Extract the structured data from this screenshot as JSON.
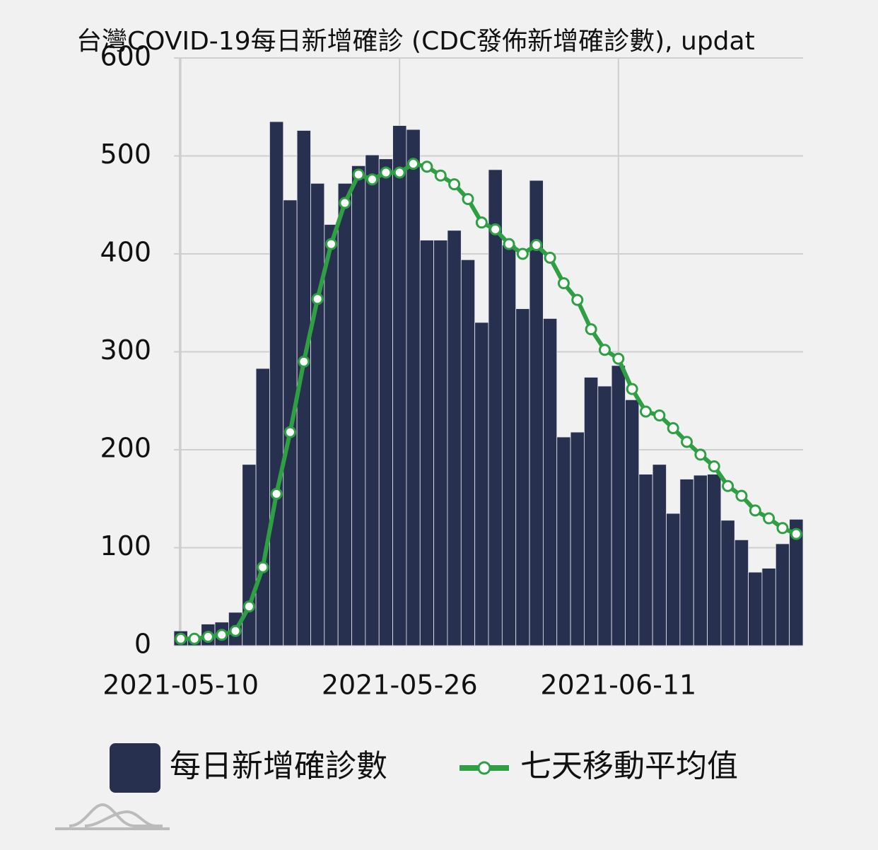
{
  "chart_data": {
    "type": "bar+line",
    "title": "台灣COVID-19每日新增確診 (CDC發佈新增確診數), updat",
    "x": [
      "2021-05-10",
      "2021-05-11",
      "2021-05-12",
      "2021-05-13",
      "2021-05-14",
      "2021-05-15",
      "2021-05-16",
      "2021-05-17",
      "2021-05-18",
      "2021-05-19",
      "2021-05-20",
      "2021-05-21",
      "2021-05-22",
      "2021-05-23",
      "2021-05-24",
      "2021-05-25",
      "2021-05-26",
      "2021-05-27",
      "2021-05-28",
      "2021-05-29",
      "2021-05-30",
      "2021-05-31",
      "2021-06-01",
      "2021-06-02",
      "2021-06-03",
      "2021-06-04",
      "2021-06-05",
      "2021-06-06",
      "2021-06-07",
      "2021-06-08",
      "2021-06-09",
      "2021-06-10",
      "2021-06-11",
      "2021-06-12",
      "2021-06-13",
      "2021-06-14",
      "2021-06-15",
      "2021-06-16",
      "2021-06-17",
      "2021-06-18",
      "2021-06-19",
      "2021-06-20",
      "2021-06-21",
      "2021-06-22",
      "2021-06-23",
      "2021-06-24"
    ],
    "xticks": [
      "2021-05-10",
      "2021-05-26",
      "2021-06-11"
    ],
    "series": [
      {
        "name": "每日新增確診數",
        "type": "bar",
        "color": "#28304f",
        "values": [
          15,
          7,
          22,
          24,
          34,
          185,
          283,
          535,
          455,
          526,
          472,
          430,
          472,
          490,
          501,
          497,
          531,
          527,
          414,
          414,
          424,
          394,
          330,
          486,
          409,
          344,
          475,
          334,
          213,
          218,
          274,
          265,
          286,
          251,
          175,
          185,
          135,
          170,
          174,
          175,
          128,
          108,
          75,
          79,
          104,
          129
        ]
      },
      {
        "name": "七天移動平均值",
        "type": "line",
        "color": "#2ea043",
        "values": [
          7,
          7,
          9,
          11,
          15,
          40,
          80,
          155,
          218,
          290,
          354,
          410,
          452,
          481,
          476,
          483,
          483,
          492,
          489,
          480,
          471,
          456,
          432,
          425,
          410,
          400,
          409,
          396,
          370,
          353,
          323,
          302,
          293,
          262,
          239,
          235,
          222,
          208,
          195,
          183,
          163,
          153,
          138,
          130,
          120,
          114
        ]
      }
    ],
    "ylim": [
      0,
      600
    ],
    "yticks": [
      0,
      100,
      200,
      300,
      400,
      500,
      600
    ],
    "grid": true
  }
}
